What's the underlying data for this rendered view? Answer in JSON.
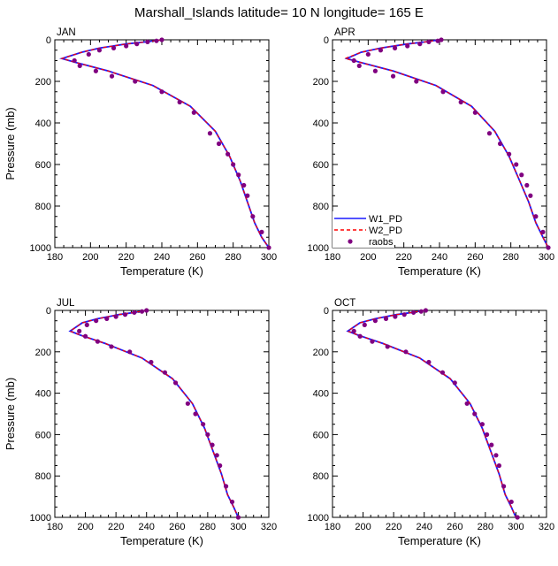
{
  "title": "Marshall_Islands  latitude= 10 N longitude= 165 E",
  "legend": {
    "items": [
      {
        "label": "W1_PD",
        "color": "#1a1aff",
        "style": "solid"
      },
      {
        "label": "W2_PD",
        "color": "#ff0000",
        "style": "dashed"
      },
      {
        "label": "raobs",
        "color": "#800080",
        "style": "marker"
      }
    ]
  },
  "chart_data": [
    {
      "type": "line",
      "panel": "JAN",
      "xlabel": "Temperature (K)",
      "ylabel": "Pressure (mb)",
      "xlim": [
        180,
        300
      ],
      "ylim": [
        1000,
        0
      ],
      "xticks": [
        180,
        200,
        220,
        240,
        260,
        280,
        300
      ],
      "yticks": [
        0,
        200,
        400,
        600,
        800,
        1000
      ],
      "series": [
        {
          "name": "W1_PD",
          "color": "#1a1aff",
          "x": [
            240,
            231,
            220,
            205,
            195,
            184,
            192,
            210,
            235,
            256,
            270,
            278,
            284,
            288,
            292,
            296,
            300
          ],
          "y": [
            0,
            10,
            20,
            40,
            60,
            90,
            110,
            150,
            220,
            320,
            440,
            560,
            680,
            780,
            880,
            950,
            1000
          ]
        },
        {
          "name": "W2_PD",
          "color": "#ff0000",
          "x": [
            240,
            231,
            220,
            205,
            195,
            184,
            192,
            210,
            235,
            256,
            270,
            278,
            284,
            288,
            292,
            296,
            300
          ],
          "y": [
            0,
            10,
            20,
            40,
            60,
            90,
            110,
            150,
            220,
            320,
            440,
            560,
            680,
            780,
            880,
            950,
            1000
          ]
        },
        {
          "name": "raobs",
          "color": "#800080",
          "x": [
            240,
            237,
            232,
            226,
            220,
            213,
            205,
            199,
            191,
            194,
            203,
            212,
            225,
            240,
            250,
            258,
            267,
            272,
            277,
            280,
            283,
            286,
            288,
            291,
            296,
            300
          ],
          "y": [
            0,
            5,
            10,
            20,
            30,
            40,
            50,
            70,
            100,
            125,
            150,
            175,
            200,
            250,
            300,
            350,
            450,
            500,
            550,
            600,
            650,
            700,
            750,
            850,
            925,
            1000
          ]
        }
      ]
    },
    {
      "type": "line",
      "panel": "APR",
      "xlabel": "Temperature (K)",
      "ylabel": "",
      "xlim": [
        180,
        300
      ],
      "ylim": [
        1000,
        0
      ],
      "xticks": [
        180,
        200,
        220,
        240,
        260,
        280,
        300
      ],
      "yticks": [
        0,
        200,
        400,
        600,
        800,
        1000
      ],
      "series": [
        {
          "name": "W1_PD",
          "color": "#1a1aff",
          "x": [
            240,
            232,
            222,
            207,
            196,
            188,
            196,
            214,
            238,
            258,
            271,
            279,
            285,
            290,
            294,
            298,
            301
          ],
          "y": [
            0,
            10,
            20,
            40,
            60,
            90,
            110,
            150,
            220,
            320,
            440,
            560,
            680,
            780,
            880,
            950,
            1000
          ]
        },
        {
          "name": "W2_PD",
          "color": "#ff0000",
          "x": [
            240,
            232,
            222,
            207,
            196,
            187,
            196,
            214,
            238,
            258,
            271,
            279,
            285,
            290,
            294,
            298,
            301
          ],
          "y": [
            0,
            10,
            20,
            40,
            60,
            90,
            110,
            150,
            220,
            320,
            440,
            560,
            680,
            780,
            880,
            950,
            1000
          ]
        },
        {
          "name": "raobs",
          "color": "#800080",
          "x": [
            241,
            239,
            234,
            229,
            222,
            215,
            207,
            200,
            192,
            195,
            204,
            214,
            227,
            242,
            252,
            260,
            268,
            274,
            279,
            283,
            286,
            289,
            291,
            294,
            298,
            301
          ],
          "y": [
            0,
            5,
            10,
            20,
            30,
            40,
            50,
            70,
            100,
            125,
            150,
            175,
            200,
            250,
            300,
            350,
            450,
            500,
            550,
            600,
            650,
            700,
            750,
            850,
            925,
            1000
          ]
        }
      ]
    },
    {
      "type": "line",
      "panel": "JUL",
      "xlabel": "Temperature (K)",
      "ylabel": "Pressure (mb)",
      "xlim": [
        180,
        320
      ],
      "ylim": [
        1000,
        0
      ],
      "xticks": [
        180,
        200,
        220,
        240,
        260,
        280,
        300,
        320
      ],
      "yticks": [
        0,
        200,
        400,
        600,
        800,
        1000
      ],
      "series": [
        {
          "name": "W1_PD",
          "color": "#1a1aff",
          "x": [
            240,
            232,
            222,
            208,
            198,
            190,
            197,
            213,
            237,
            257,
            270,
            278,
            284,
            289,
            293,
            297,
            300
          ],
          "y": [
            0,
            10,
            20,
            40,
            60,
            100,
            120,
            160,
            230,
            330,
            450,
            570,
            690,
            790,
            890,
            950,
            1000
          ]
        },
        {
          "name": "W2_PD",
          "color": "#ff0000",
          "x": [
            240,
            232,
            222,
            208,
            198,
            190,
            197,
            213,
            237,
            257,
            270,
            278,
            284,
            289,
            293,
            297,
            300
          ],
          "y": [
            0,
            10,
            20,
            40,
            60,
            100,
            120,
            160,
            230,
            330,
            450,
            570,
            690,
            790,
            890,
            950,
            1000
          ]
        },
        {
          "name": "raobs",
          "color": "#800080",
          "x": [
            240,
            237,
            232,
            226,
            220,
            214,
            207,
            201,
            196,
            200,
            208,
            217,
            229,
            243,
            252,
            259,
            267,
            272,
            277,
            280,
            283,
            286,
            288,
            292,
            296,
            300
          ],
          "y": [
            0,
            5,
            10,
            20,
            30,
            40,
            50,
            70,
            100,
            125,
            150,
            175,
            200,
            250,
            300,
            350,
            450,
            500,
            550,
            600,
            650,
            700,
            750,
            850,
            925,
            1000
          ]
        }
      ]
    },
    {
      "type": "line",
      "panel": "OCT",
      "xlabel": "Temperature (K)",
      "ylabel": "",
      "xlim": [
        180,
        320
      ],
      "ylim": [
        1000,
        0
      ],
      "xticks": [
        180,
        200,
        220,
        240,
        260,
        280,
        300,
        320
      ],
      "yticks": [
        0,
        200,
        400,
        600,
        800,
        1000
      ],
      "series": [
        {
          "name": "W1_PD",
          "color": "#1a1aff",
          "x": [
            240,
            232,
            222,
            208,
            198,
            190,
            197,
            213,
            237,
            257,
            270,
            278,
            284,
            289,
            293,
            297,
            300
          ],
          "y": [
            0,
            10,
            20,
            40,
            60,
            100,
            120,
            160,
            230,
            330,
            450,
            570,
            690,
            790,
            890,
            950,
            1000
          ]
        },
        {
          "name": "W2_PD",
          "color": "#ff0000",
          "x": [
            240,
            232,
            222,
            208,
            198,
            190,
            197,
            213,
            237,
            257,
            270,
            278,
            284,
            289,
            293,
            297,
            300
          ],
          "y": [
            0,
            10,
            20,
            40,
            60,
            100,
            120,
            160,
            230,
            330,
            450,
            570,
            690,
            790,
            890,
            950,
            1000
          ]
        },
        {
          "name": "raobs",
          "color": "#800080",
          "x": [
            241,
            238,
            233,
            227,
            221,
            215,
            208,
            201,
            194,
            198,
            206,
            216,
            228,
            243,
            252,
            260,
            268,
            273,
            278,
            281,
            284,
            287,
            289,
            292,
            297,
            301
          ],
          "y": [
            0,
            5,
            10,
            20,
            30,
            40,
            50,
            70,
            100,
            125,
            150,
            175,
            200,
            250,
            300,
            350,
            450,
            500,
            550,
            600,
            650,
            700,
            750,
            850,
            925,
            1000
          ]
        }
      ]
    }
  ]
}
